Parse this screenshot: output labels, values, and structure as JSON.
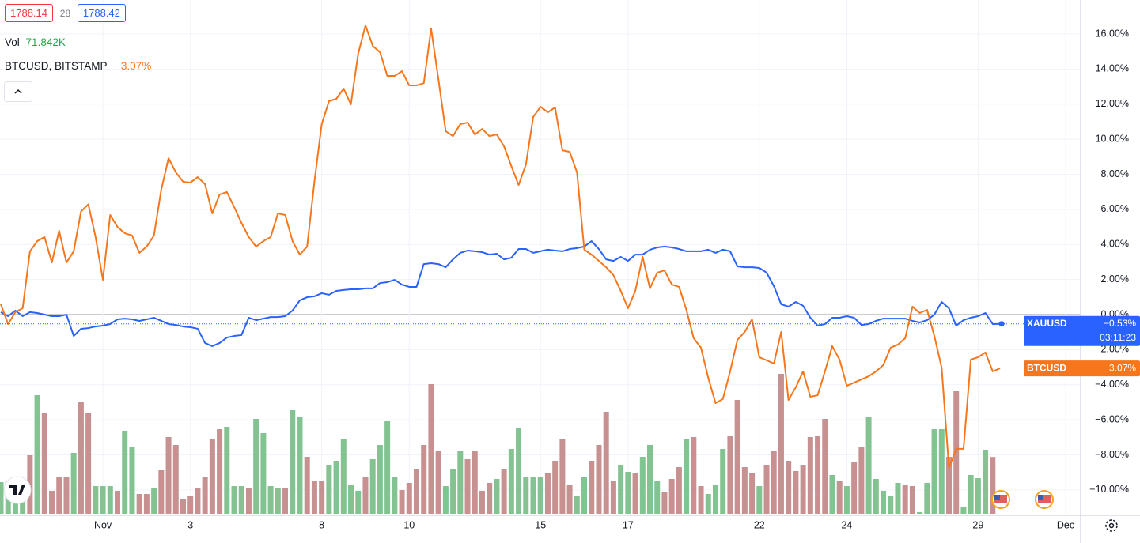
{
  "toolbar": {
    "sell": 1788.14,
    "spread": 28,
    "buy": 1788.42
  },
  "chart_data": {
    "type": "line",
    "categories": [
      null,
      null,
      null,
      null,
      null,
      null,
      null,
      null,
      null,
      null,
      null,
      null,
      null,
      null,
      "Nov",
      null,
      null,
      null,
      null,
      null,
      null,
      null,
      null,
      null,
      null,
      null,
      "3",
      null,
      null,
      null,
      null,
      null,
      null,
      null,
      null,
      null,
      null,
      null,
      null,
      null,
      null,
      null,
      null,
      null,
      "8",
      null,
      null,
      null,
      null,
      null,
      null,
      null,
      null,
      null,
      null,
      null,
      "10",
      null,
      null,
      null,
      null,
      null,
      null,
      null,
      null,
      null,
      null,
      null,
      null,
      null,
      null,
      null,
      null,
      null,
      "15",
      null,
      null,
      null,
      null,
      null,
      null,
      null,
      null,
      null,
      null,
      null,
      "17",
      null,
      null,
      null,
      null,
      null,
      null,
      null,
      null,
      null,
      null,
      null,
      null,
      null,
      null,
      null,
      null,
      null,
      "22",
      null,
      null,
      null,
      null,
      null,
      null,
      null,
      null,
      null,
      null,
      null,
      "24",
      null,
      null,
      null,
      null,
      null,
      null,
      null,
      null,
      null,
      null,
      null,
      null,
      null,
      null,
      null,
      null,
      null,
      "29",
      null,
      null,
      null,
      null,
      null,
      null,
      null,
      null,
      null,
      null,
      null,
      "Dec"
    ],
    "series": [
      {
        "name": "XAUUSD",
        "color": "#2962ff",
        "last_label": "−0.53%",
        "countdown": "03:11:23",
        "price_line": true,
        "values": [
          0.14,
          -0.09,
          0.23,
          -0.09,
          0.14,
          0.09,
          0,
          -0.09,
          -0.09,
          0,
          -1.22,
          -0.81,
          -0.77,
          -0.68,
          -0.63,
          -0.54,
          -0.27,
          -0.23,
          -0.27,
          -0.36,
          -0.27,
          -0.18,
          -0.36,
          -0.54,
          -0.59,
          -0.68,
          -0.72,
          -0.81,
          -1.62,
          -1.8,
          -1.62,
          -1.31,
          -1.22,
          -1.17,
          -0.18,
          -0.32,
          -0.23,
          -0.14,
          -0.14,
          -0.09,
          0.23,
          0.81,
          0.99,
          1.04,
          1.22,
          1.13,
          1.35,
          1.4,
          1.44,
          1.44,
          1.49,
          1.49,
          1.8,
          1.85,
          1.98,
          1.71,
          1.58,
          1.58,
          2.88,
          2.93,
          2.88,
          2.7,
          3.15,
          3.52,
          3.65,
          3.61,
          3.56,
          3.42,
          3.47,
          3.15,
          3.24,
          3.74,
          3.74,
          3.52,
          3.61,
          3.7,
          3.65,
          3.61,
          3.74,
          3.79,
          3.88,
          4.19,
          3.74,
          3.15,
          3.06,
          3.29,
          3.06,
          3.42,
          3.42,
          3.7,
          3.83,
          3.88,
          3.83,
          3.74,
          3.61,
          3.61,
          3.61,
          3.7,
          3.52,
          3.7,
          3.61,
          2.75,
          2.7,
          2.7,
          2.66,
          2.39,
          1.62,
          0.59,
          0.45,
          0.72,
          0.5,
          -0.18,
          -0.63,
          -0.54,
          -0.18,
          -0.18,
          -0.09,
          -0.18,
          -0.59,
          -0.54,
          -0.36,
          -0.23,
          -0.23,
          -0.23,
          -0.23,
          -0.36,
          -0.45,
          -0.32,
          0,
          0.72,
          0.36,
          -0.63,
          -0.32,
          -0.18,
          -0.09,
          0.09,
          -0.54,
          -0.53,
          null,
          null,
          null,
          null,
          null,
          null,
          null,
          null,
          null
        ]
      },
      {
        "name": "BTCUSD",
        "legend_label": "BTCUSD, BITSTAMP",
        "color": "#f7761c",
        "last_label": "−3.07%",
        "values": [
          0.59,
          -0.54,
          0.14,
          0.36,
          3.61,
          4.19,
          4.42,
          2.97,
          4.78,
          2.97,
          3.61,
          5.88,
          6.29,
          4.42,
          1.98,
          5.68,
          5.0,
          4.64,
          4.51,
          3.52,
          3.88,
          4.51,
          7.12,
          8.92,
          8.11,
          7.57,
          7.53,
          7.84,
          7.44,
          5.77,
          6.85,
          6.99,
          6.13,
          5.23,
          4.42,
          3.88,
          4.19,
          4.42,
          5.77,
          5.68,
          4.19,
          3.42,
          3.88,
          7.57,
          10.86,
          12.17,
          12.3,
          12.89,
          11.99,
          14.87,
          16.49,
          15.32,
          14.96,
          13.61,
          13.61,
          13.88,
          13.07,
          13.07,
          13.2,
          16.31,
          13.43,
          10.46,
          10.18,
          10.86,
          10.95,
          10.27,
          10.59,
          10.18,
          10.27,
          9.6,
          8.47,
          7.39,
          8.56,
          11.27,
          11.85,
          11.54,
          11.81,
          9.37,
          9.28,
          8.11,
          3.7,
          3.42,
          3.06,
          2.7,
          2.25,
          1.35,
          0.36,
          1.35,
          3.29,
          1.49,
          2.39,
          2.52,
          1.71,
          1.58,
          0.27,
          -1.35,
          -1.89,
          -3.61,
          -5.05,
          -4.82,
          -3.24,
          -1.44,
          -0.99,
          -0.27,
          -2.43,
          -2.61,
          -2.79,
          -0.99,
          -4.87,
          -4.15,
          -3.24,
          -4.69,
          -4.6,
          -3.24,
          -1.8,
          -2.57,
          -4.06,
          -3.88,
          -3.7,
          -3.52,
          -3.24,
          -2.88,
          -1.89,
          -1.71,
          -1.35,
          0.45,
          0.09,
          0.27,
          -1.22,
          -3.02,
          -8.74,
          -7.66,
          -7.66,
          -2.57,
          -2.43,
          -2.16,
          -3.24,
          -3.07,
          null,
          null,
          null,
          null,
          null,
          null,
          null,
          null,
          null
        ]
      }
    ],
    "volume": {
      "name": "Vol",
      "last_label": "71.842K",
      "values": [
        40,
        42,
        38,
        44,
        74,
        150,
        127,
        29,
        47,
        47,
        77,
        142,
        127,
        35,
        35,
        35,
        29,
        105,
        85,
        25,
        25,
        32,
        55,
        97,
        87,
        19,
        22,
        32,
        47,
        95,
        107,
        110,
        35,
        35,
        32,
        120,
        102,
        35,
        32,
        32,
        131,
        122,
        72,
        42,
        42,
        62,
        67,
        95,
        37,
        29,
        47,
        69,
        87,
        117,
        47,
        30,
        39,
        57,
        87,
        164,
        79,
        35,
        57,
        80,
        69,
        79,
        29,
        39,
        44,
        57,
        82,
        109,
        47,
        47,
        47,
        52,
        67,
        94,
        37,
        22,
        47,
        67,
        87,
        129,
        42,
        62,
        53,
        52,
        72,
        87,
        42,
        27,
        44,
        59,
        94,
        97,
        35,
        25,
        37,
        82,
        99,
        144,
        59,
        52,
        35,
        62,
        79,
        177,
        67,
        54,
        62,
        97,
        99,
        120,
        49,
        42,
        35,
        65,
        85,
        122,
        44,
        29,
        22,
        39,
        37,
        35,
        2,
        39,
        107,
        107,
        72,
        155,
        9,
        49,
        45,
        81,
        71.842,
        null,
        null,
        null,
        null,
        null,
        null,
        null,
        null,
        null,
        null
      ],
      "colors": [
        "#83c391",
        "#83c391",
        "#83c391",
        "#83c391",
        "#c79191",
        "#83c391",
        "#c79191",
        "#c79191",
        "#c79191",
        "#c79191",
        "#83c391",
        "#c79191",
        "#c79191",
        "#83c391",
        "#83c391",
        "#83c391",
        "#c79191",
        "#83c391",
        "#83c391",
        "#c79191",
        "#c79191",
        "#83c391",
        "#c79191",
        "#c79191",
        "#c79191",
        "#c79191",
        "#c79191",
        "#c79191",
        "#c79191",
        "#c79191",
        "#c79191",
        "#83c391",
        "#83c391",
        "#83c391",
        "#c79191",
        "#83c391",
        "#83c391",
        "#83c391",
        "#83c391",
        "#c79191",
        "#83c391",
        "#83c391",
        "#c79191",
        "#c79191",
        "#c79191",
        "#83c391",
        "#83c391",
        "#83c391",
        "#83c391",
        "#83c391",
        "#c79191",
        "#83c391",
        "#83c391",
        "#83c391",
        "#83c391",
        "#c79191",
        "#c79191",
        "#c79191",
        "#c79191",
        "#c79191",
        "#c79191",
        "#83c391",
        "#83c391",
        "#83c391",
        "#c79191",
        "#c79191",
        "#c79191",
        "#c79191",
        "#83c391",
        "#c79191",
        "#83c391",
        "#83c391",
        "#83c391",
        "#83c391",
        "#83c391",
        "#c79191",
        "#c79191",
        "#c79191",
        "#c79191",
        "#83c391",
        "#83c391",
        "#c79191",
        "#c79191",
        "#c79191",
        "#c79191",
        "#83c391",
        "#83c391",
        "#c79191",
        "#83c391",
        "#83c391",
        "#83c391",
        "#c79191",
        "#c79191",
        "#c79191",
        "#83c391",
        "#c79191",
        "#c79191",
        "#83c391",
        "#83c391",
        "#83c391",
        "#c79191",
        "#c79191",
        "#c79191",
        "#c79191",
        "#83c391",
        "#c79191",
        "#c79191",
        "#c79191",
        "#c79191",
        "#c79191",
        "#c79191",
        "#c79191",
        "#c79191",
        "#c79191",
        "#83c391",
        "#c79191",
        "#83c391",
        "#c79191",
        "#c79191",
        "#83c391",
        "#83c391",
        "#83c391",
        "#83c391",
        "#83c391",
        "#c79191",
        "#c79191",
        "#83c391",
        "#83c391",
        "#83c391",
        "#83c391",
        "#c79191",
        "#c79191",
        "#83c391",
        "#83c391",
        "#83c391",
        "#83c391",
        "#c79191",
        null,
        null,
        null,
        null,
        null,
        null,
        null,
        null,
        null,
        null
      ]
    },
    "ylim": [
      -11.45,
      17.94
    ],
    "yticks": [
      {
        "value": -10,
        "label": "−10.00%"
      },
      {
        "value": -8,
        "label": "−8.00%"
      },
      {
        "value": -6,
        "label": "−6.00%"
      },
      {
        "value": -4,
        "label": "−4.00%"
      },
      {
        "value": -2,
        "label": "−2.00%"
      },
      {
        "value": 0,
        "label": "0.00%"
      },
      {
        "value": 2,
        "label": "2.00%"
      },
      {
        "value": 4,
        "label": "4.00%"
      },
      {
        "value": 6,
        "label": "6.00%"
      },
      {
        "value": 8,
        "label": "8.00%"
      },
      {
        "value": 10,
        "label": "10.00%"
      },
      {
        "value": 12,
        "label": "12.00%"
      },
      {
        "value": 14,
        "label": "14.00%"
      },
      {
        "value": 16,
        "label": "16.00%"
      }
    ],
    "grid": true
  }
}
